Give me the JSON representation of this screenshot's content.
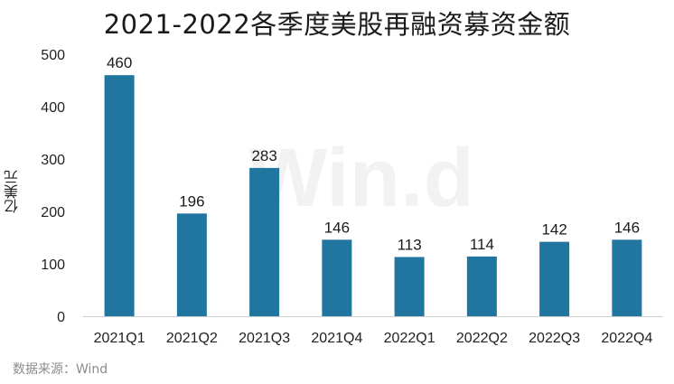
{
  "chart_data": {
    "type": "bar",
    "title": "2021-2022各季度美股再融资募资金额",
    "ylabel": "亿美元",
    "xlabel": "",
    "categories": [
      "2021Q1",
      "2021Q2",
      "2021Q3",
      "2021Q4",
      "2022Q1",
      "2022Q2",
      "2022Q3",
      "2022Q4"
    ],
    "values": [
      460,
      196,
      283,
      146,
      113,
      114,
      142,
      146
    ],
    "ylim": [
      0,
      500
    ],
    "yticks": [
      0,
      100,
      200,
      300,
      400,
      500
    ],
    "grid": false,
    "data_labels": true,
    "bar_color": "#2176a0"
  },
  "source": "数据来源：Wind",
  "watermark": "Win.d"
}
